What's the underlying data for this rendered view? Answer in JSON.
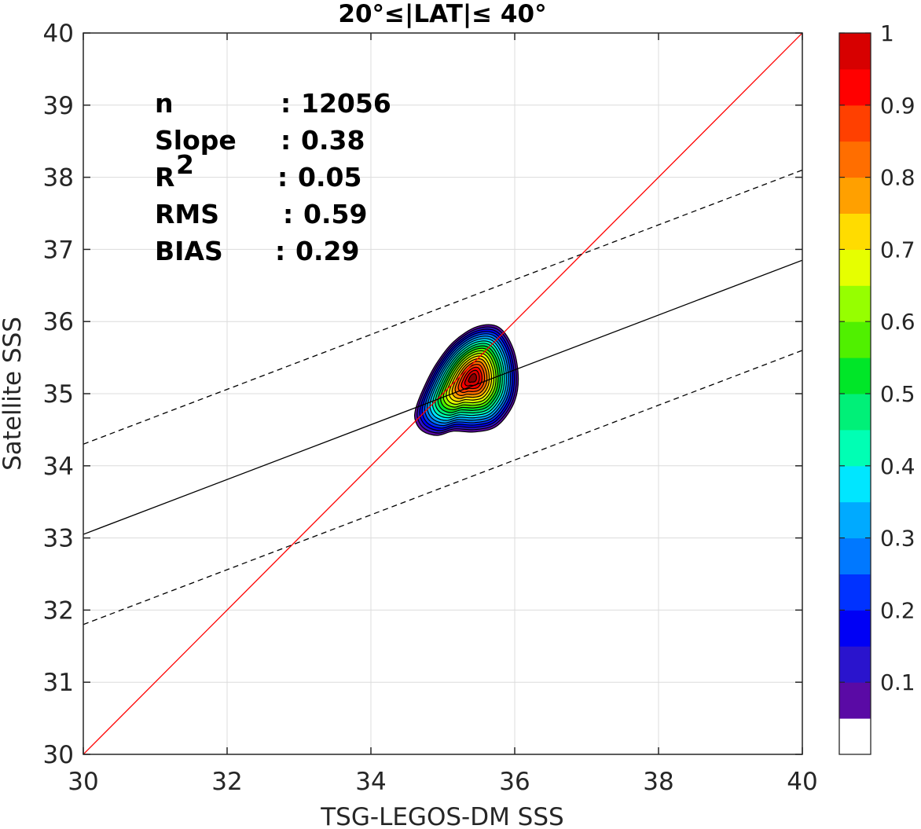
{
  "chart_data": {
    "type": "contour",
    "title": "20°≤|LAT|≤ 40°",
    "xlabel": "TSG-LEGOS-DM SSS",
    "ylabel": "Satellite SSS",
    "xlim": [
      30,
      40
    ],
    "ylim": [
      30,
      40
    ],
    "xticks": [
      "30",
      "32",
      "34",
      "36",
      "38",
      "40"
    ],
    "yticks": [
      "30",
      "31",
      "32",
      "33",
      "34",
      "35",
      "36",
      "37",
      "38",
      "39",
      "40"
    ],
    "grid": true,
    "stats": [
      {
        "label": "n",
        "sep": ":",
        "value": "12056"
      },
      {
        "label": "Slope",
        "sep": ":",
        "value": "0.38"
      },
      {
        "label": "R",
        "sup": "2",
        "sep": ":",
        "value": "0.05"
      },
      {
        "label": "RMS",
        "sep": ":",
        "value": "0.59"
      },
      {
        "label": "BIAS",
        "sep": ":",
        "value": "0.29"
      }
    ],
    "lines": [
      {
        "name": "identity",
        "style": "solid",
        "color": "#ff0000",
        "points": [
          [
            30,
            30
          ],
          [
            40,
            40
          ]
        ]
      },
      {
        "name": "regression",
        "style": "solid",
        "color": "#000000",
        "points": [
          [
            30,
            33.05
          ],
          [
            40,
            36.85
          ]
        ]
      },
      {
        "name": "regression-plus-rms",
        "style": "dashed",
        "color": "#000000",
        "points": [
          [
            30,
            34.3
          ],
          [
            40,
            38.1
          ]
        ]
      },
      {
        "name": "regression-minus-rms",
        "style": "dashed",
        "color": "#000000",
        "points": [
          [
            30,
            31.8
          ],
          [
            40,
            35.6
          ]
        ]
      }
    ],
    "density_peak": {
      "x": 35.42,
      "y": 35.22
    },
    "density_extent": {
      "x": [
        34.6,
        36.05
      ],
      "y": [
        34.4,
        35.95
      ]
    },
    "colorbar": {
      "ticks": [
        "1",
        "0.9",
        "0.8",
        "0.7",
        "0.6",
        "0.5",
        "0.4",
        "0.3",
        "0.2",
        "0.1"
      ],
      "tick_values": [
        1,
        0.9,
        0.8,
        0.7,
        0.6,
        0.5,
        0.4,
        0.3,
        0.2,
        0.1
      ],
      "levels": [
        0,
        0.05,
        0.1,
        0.15,
        0.2,
        0.25,
        0.3,
        0.35,
        0.4,
        0.45,
        0.5,
        0.55,
        0.6,
        0.65,
        0.7,
        0.75,
        0.8,
        0.85,
        0.9,
        0.95,
        1
      ],
      "colors": [
        "#ffffff",
        "#5a0aa5",
        "#2a14cd",
        "#0000f5",
        "#0032ff",
        "#0078ff",
        "#00aaff",
        "#00e6ff",
        "#00ffb4",
        "#00f078",
        "#00e628",
        "#50f000",
        "#96ff00",
        "#e6ff00",
        "#ffdc00",
        "#ffa000",
        "#ff6e00",
        "#ff4000",
        "#ff0000",
        "#d70000",
        "#870000"
      ]
    }
  }
}
